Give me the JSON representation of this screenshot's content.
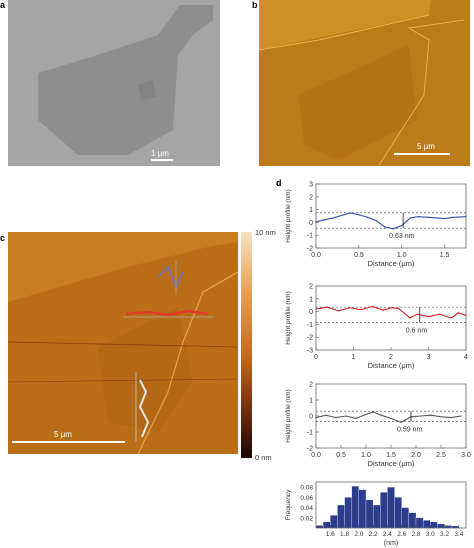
{
  "panels": {
    "a": {
      "letter": "a",
      "scalebar": "1 μm"
    },
    "b": {
      "letter": "b",
      "scalebar": "5 μm"
    },
    "c": {
      "letter": "c",
      "scalebar": "5 μm",
      "colorbar_top": "10 nm",
      "colorbar_bottom": "0 nm"
    },
    "d": {
      "letter": "d"
    }
  },
  "colors": {
    "profile1": "#2a4fa3",
    "profile2": "#d42020",
    "profile3": "#555555",
    "histogram": "#2b3d8c"
  },
  "chart_data": [
    {
      "type": "line",
      "ylabel": "Height profile (nm)",
      "xlabel": "Distance (μm)",
      "xlim": [
        0,
        1.75
      ],
      "ylim": [
        -2,
        3
      ],
      "xticks": [
        "0.0",
        "0.5",
        "1.0",
        "1.5"
      ],
      "yticks": [
        "-2",
        "-1",
        "0",
        "1",
        "2",
        "3"
      ],
      "annotation": "0.63 nm",
      "dashed_levels": [
        0.75,
        -0.45
      ],
      "x": [
        0,
        0.1,
        0.2,
        0.3,
        0.4,
        0.5,
        0.6,
        0.7,
        0.8,
        0.9,
        1.0,
        1.1,
        1.2,
        1.3,
        1.4,
        1.5,
        1.6,
        1.75
      ],
      "y": [
        0.05,
        0.2,
        0.35,
        0.55,
        0.75,
        0.6,
        0.4,
        0.15,
        -0.35,
        -0.5,
        -0.25,
        0.35,
        0.45,
        0.4,
        0.35,
        0.3,
        0.4,
        0.45
      ]
    },
    {
      "type": "line",
      "ylabel": "Height profile (nm)",
      "xlabel": "Distance (μm)",
      "xlim": [
        0,
        4
      ],
      "ylim": [
        -3,
        2
      ],
      "xticks": [
        "0",
        "1",
        "2",
        "3",
        "4"
      ],
      "yticks": [
        "-3",
        "-2",
        "-1",
        "0",
        "1",
        "2"
      ],
      "annotation": "0.6 nm",
      "dashed_levels": [
        0.35,
        -0.85
      ],
      "x": [
        0,
        0.3,
        0.6,
        0.9,
        1.2,
        1.5,
        1.8,
        2.0,
        2.2,
        2.35,
        2.5,
        2.7,
        3.0,
        3.3,
        3.6,
        3.8,
        4.0
      ],
      "y": [
        0.2,
        0.35,
        0.05,
        0.3,
        0.15,
        0.4,
        0.1,
        0.3,
        0.25,
        -0.1,
        -0.5,
        -0.2,
        -0.4,
        -0.2,
        -0.5,
        -0.1,
        -0.3
      ]
    },
    {
      "type": "line",
      "ylabel": "Height profile (nm)",
      "xlabel": "Distance (μm)",
      "xlim": [
        0,
        3.0
      ],
      "ylim": [
        -2,
        2
      ],
      "xticks": [
        "0.0",
        "0.5",
        "1.0",
        "1.5",
        "2.0",
        "2.5",
        "3.0"
      ],
      "yticks": [
        "-2",
        "-1",
        "0",
        "1",
        "2"
      ],
      "annotation": "0.59 nm",
      "dashed_levels": [
        0.3,
        -0.35
      ],
      "x": [
        0,
        0.2,
        0.4,
        0.6,
        0.8,
        1.0,
        1.15,
        1.3,
        1.5,
        1.7,
        1.9,
        2.1,
        2.3,
        2.5,
        2.7,
        2.9
      ],
      "y": [
        -0.1,
        0.05,
        -0.1,
        0.0,
        -0.15,
        0.1,
        0.25,
        0.05,
        -0.15,
        -0.4,
        -0.05,
        0.0,
        0.05,
        -0.05,
        -0.1,
        0.0
      ]
    },
    {
      "type": "bar",
      "ylabel": "Frequency",
      "xlabel": "(nm)",
      "xlim": [
        1.4,
        3.5
      ],
      "ylim": [
        0,
        0.09
      ],
      "xticks": [
        "1.6",
        "1.8",
        "2.0",
        "2.2",
        "2.4",
        "2.6",
        "2.8",
        "3.0",
        "3.2",
        "3.4"
      ],
      "yticks": [
        "0.02",
        "0.04",
        "0.06",
        "0.08"
      ],
      "bin_centers": [
        1.45,
        1.55,
        1.65,
        1.75,
        1.85,
        1.95,
        2.05,
        2.15,
        2.25,
        2.35,
        2.45,
        2.55,
        2.65,
        2.75,
        2.85,
        2.95,
        3.05,
        3.15,
        3.25,
        3.35
      ],
      "values": [
        0.005,
        0.012,
        0.025,
        0.045,
        0.06,
        0.082,
        0.075,
        0.055,
        0.045,
        0.07,
        0.08,
        0.06,
        0.04,
        0.03,
        0.02,
        0.015,
        0.012,
        0.008,
        0.005,
        0.004
      ]
    }
  ]
}
